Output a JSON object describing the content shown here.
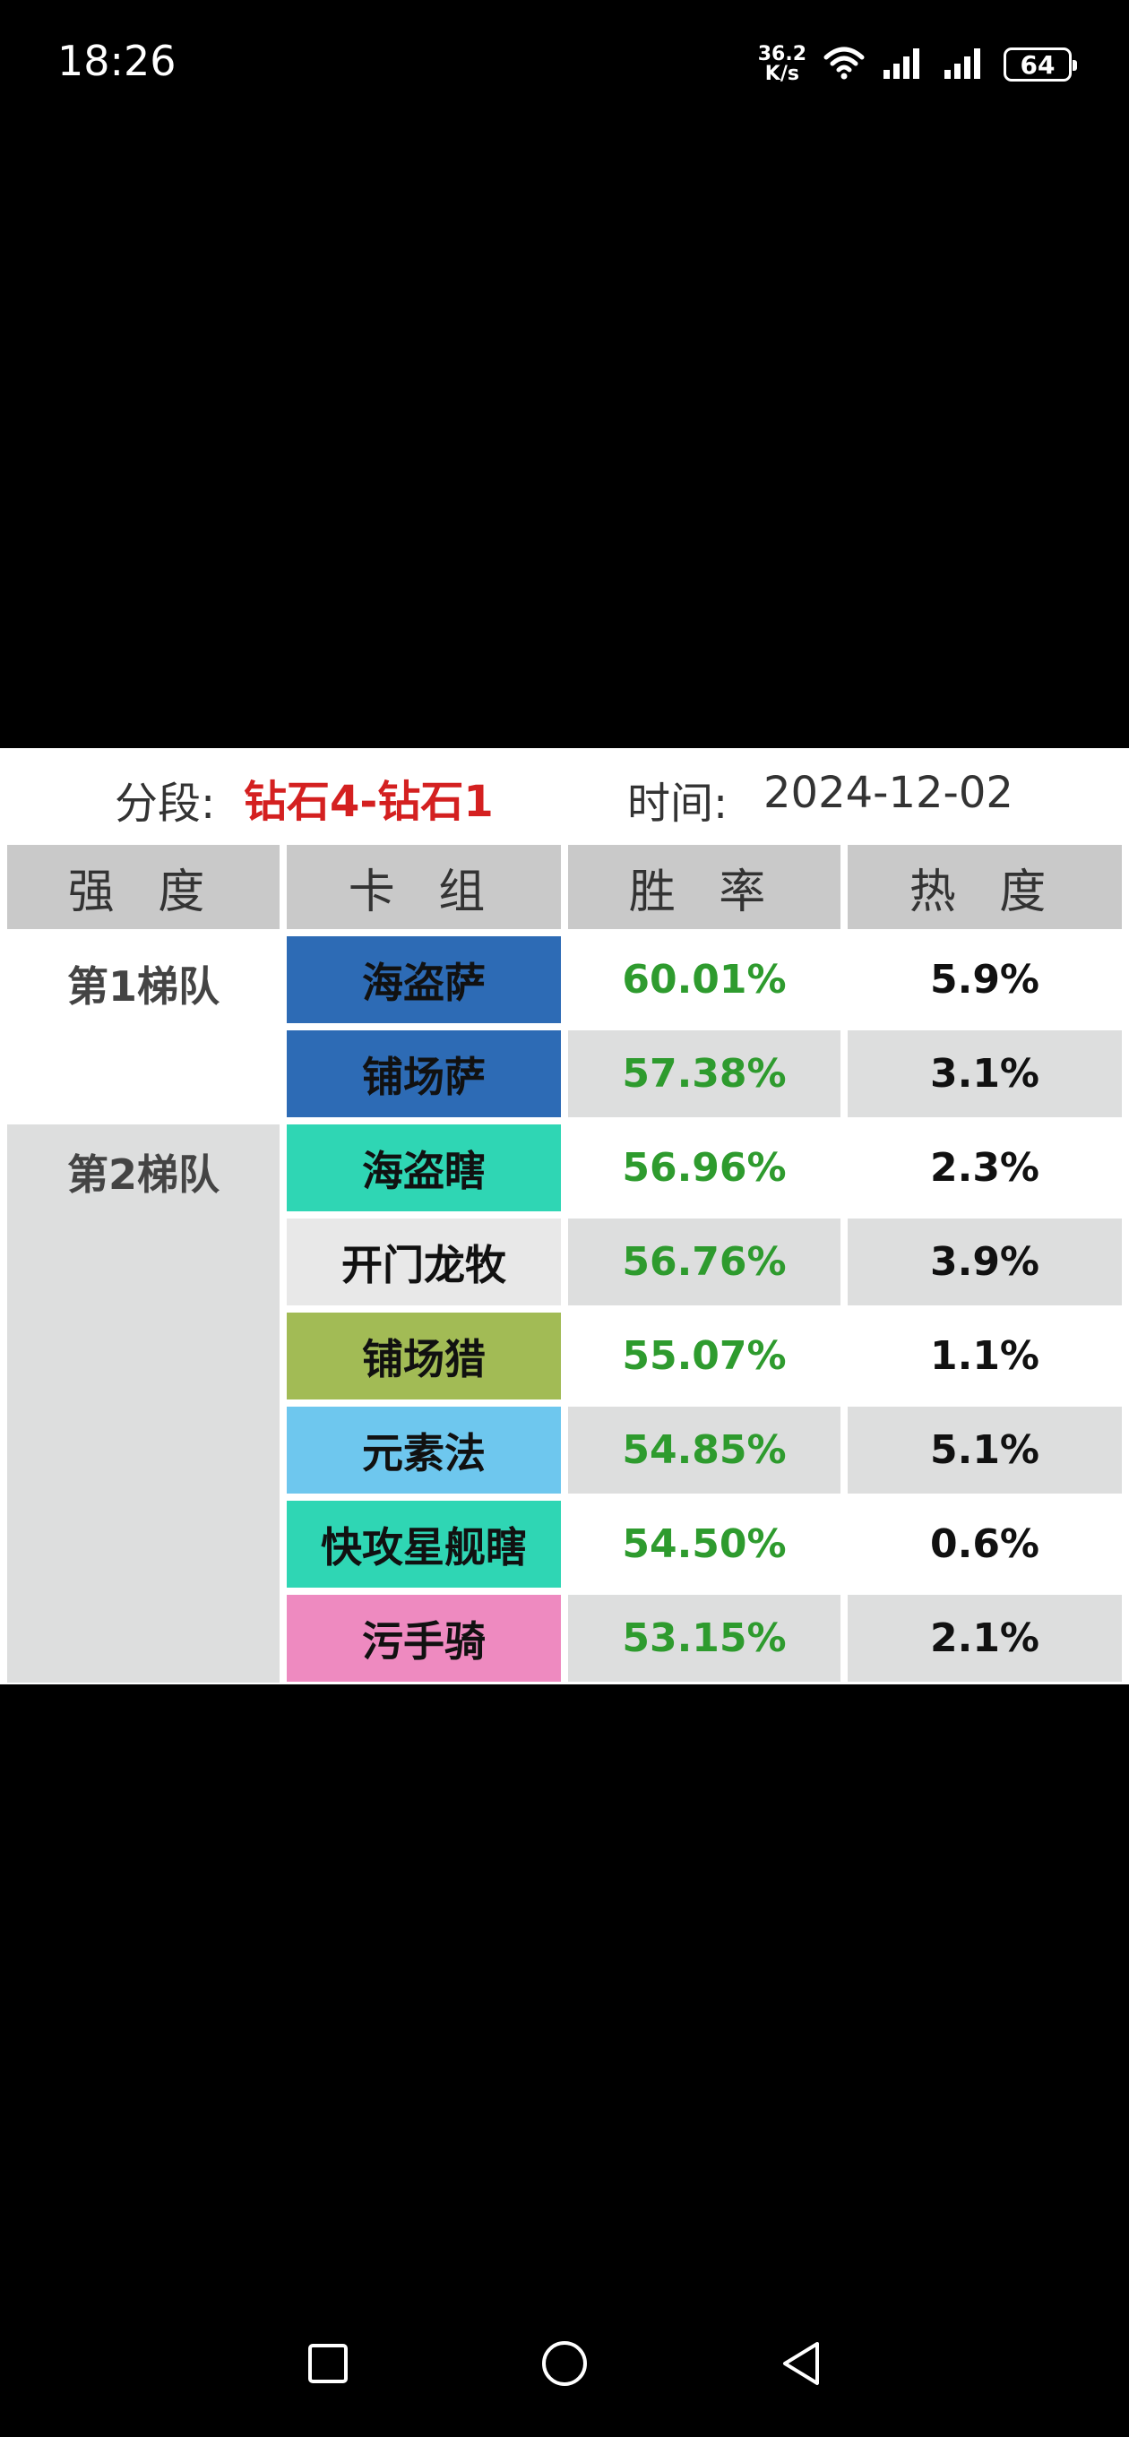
{
  "status_bar": {
    "time": "18:26",
    "net_speed_value": "36.2",
    "net_speed_unit": "K/s",
    "battery": "64",
    "icons": [
      "wifi-icon",
      "signal-icon",
      "signal-icon",
      "battery-icon"
    ]
  },
  "header": {
    "segment_label": "分段:",
    "segment_value": "钻石4-钻石1",
    "time_label": "时间:",
    "time_value": "2024-12-02"
  },
  "table": {
    "columns": [
      "强 度",
      "卡 组",
      "胜 率",
      "热 度"
    ],
    "tiers": [
      {
        "label": "第1梯队"
      },
      {
        "label": "第2梯队"
      }
    ],
    "rows": [
      {
        "deck": "海盗萨",
        "rate": "60.01%",
        "heat": "5.9%",
        "color": "#2d6bb5"
      },
      {
        "deck": "铺场萨",
        "rate": "57.38%",
        "heat": "3.1%",
        "color": "#2d6bb5"
      },
      {
        "deck": "海盗瞎",
        "rate": "56.96%",
        "heat": "2.3%",
        "color": "#2fd6b4"
      },
      {
        "deck": "开门龙牧",
        "rate": "56.76%",
        "heat": "3.9%",
        "color": "#e8e8e8"
      },
      {
        "deck": "铺场猎",
        "rate": "55.07%",
        "heat": "1.1%",
        "color": "#a2bb55"
      },
      {
        "deck": "元素法",
        "rate": "54.85%",
        "heat": "5.1%",
        "color": "#6ec7ee"
      },
      {
        "deck": "快攻星舰瞎",
        "rate": "54.50%",
        "heat": "0.6%",
        "color": "#2fd6b4"
      },
      {
        "deck": "污手骑",
        "rate": "53.15%",
        "heat": "2.1%",
        "color": "#ee8ac0"
      }
    ]
  },
  "nav_bar": {
    "icons": [
      "recents-square-icon",
      "home-circle-icon",
      "back-triangle-icon"
    ]
  }
}
